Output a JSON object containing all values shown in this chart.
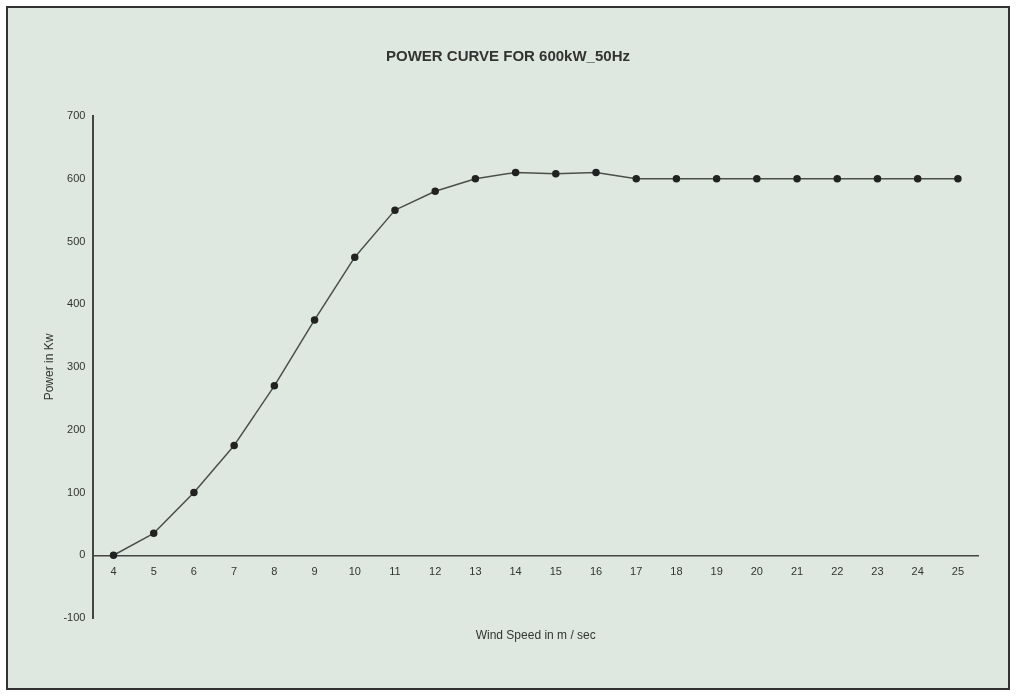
{
  "chart_data": {
    "type": "line",
    "title": "POWER CURVE FOR 600kW_50Hz",
    "xlabel": "Wind Speed in m / sec",
    "ylabel": "Power in Kw",
    "categories": [
      "4",
      "5",
      "6",
      "7",
      "8",
      "9",
      "10",
      "11",
      "12",
      "13",
      "14",
      "15",
      "16",
      "17",
      "18",
      "19",
      "20",
      "21",
      "22",
      "23",
      "24",
      "25"
    ],
    "series": [
      {
        "color": "#4a4f4a",
        "values": [
          0,
          35,
          100,
          175,
          270,
          375,
          475,
          550,
          580,
          600,
          610,
          608,
          610,
          600,
          600,
          600,
          600,
          600,
          600,
          600,
          600,
          600
        ]
      }
    ],
    "ylim": [
      -100,
      700
    ],
    "yticks": [
      -100,
      0,
      100,
      200,
      300,
      400,
      500,
      600,
      700
    ],
    "grid": false,
    "legend": false,
    "marker": "circle",
    "line_style": "solid"
  }
}
